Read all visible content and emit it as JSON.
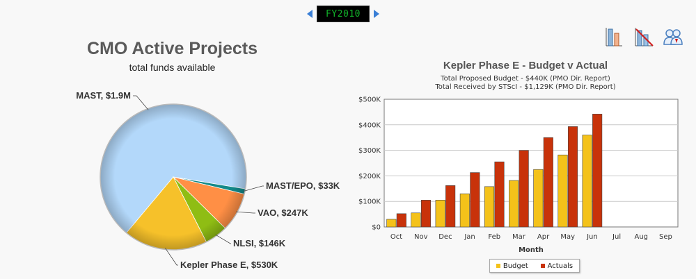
{
  "fiscal_year": "FY2010",
  "toolbar": {
    "icons": [
      "bar-chart-icon",
      "chart-filter-icon",
      "users-icon"
    ]
  },
  "colors": {
    "budget": "#f4c21a",
    "actuals": "#c8320a",
    "pie": [
      "#b3d8fa",
      "#138a8a",
      "#ff8f45",
      "#8fbd14",
      "#f6c12a"
    ]
  },
  "chart_data": [
    {
      "type": "pie",
      "title": "CMO Active Projects",
      "subtitle": "total funds available",
      "slices": [
        {
          "label": "MAST, $1.9M",
          "value": 1900
        },
        {
          "label": "MAST/EPO, $33K",
          "value": 33
        },
        {
          "label": "VAO, $247K",
          "value": 247
        },
        {
          "label": "NLSI, $146K",
          "value": 146
        },
        {
          "label": "Kepler Phase E, $530K",
          "value": 530
        }
      ]
    },
    {
      "type": "bar",
      "title": "Kepler Phase E - Budget v Actual",
      "subtitle_lines": [
        "Total Proposed Budget - $440K (PMO Dir. Report)",
        "Total Received by STScI - $1,129K (PMO Dir. Report)"
      ],
      "xlabel": "Month",
      "ylabel": "",
      "categories": [
        "Oct",
        "Nov",
        "Dec",
        "Jan",
        "Feb",
        "Mar",
        "Apr",
        "May",
        "Jun",
        "Jul",
        "Aug",
        "Sep"
      ],
      "yticks": [
        "$0",
        "$100K",
        "$200K",
        "$300K",
        "$400K",
        "$500K"
      ],
      "ylim": [
        0,
        500
      ],
      "grid": true,
      "legend": "bottom",
      "series": [
        {
          "name": "Budget",
          "values": [
            30,
            55,
            105,
            130,
            158,
            182,
            225,
            282,
            360,
            null,
            null,
            null
          ]
        },
        {
          "name": "Actuals",
          "values": [
            52,
            105,
            162,
            213,
            255,
            300,
            350,
            393,
            442,
            null,
            null,
            null
          ]
        }
      ]
    }
  ]
}
